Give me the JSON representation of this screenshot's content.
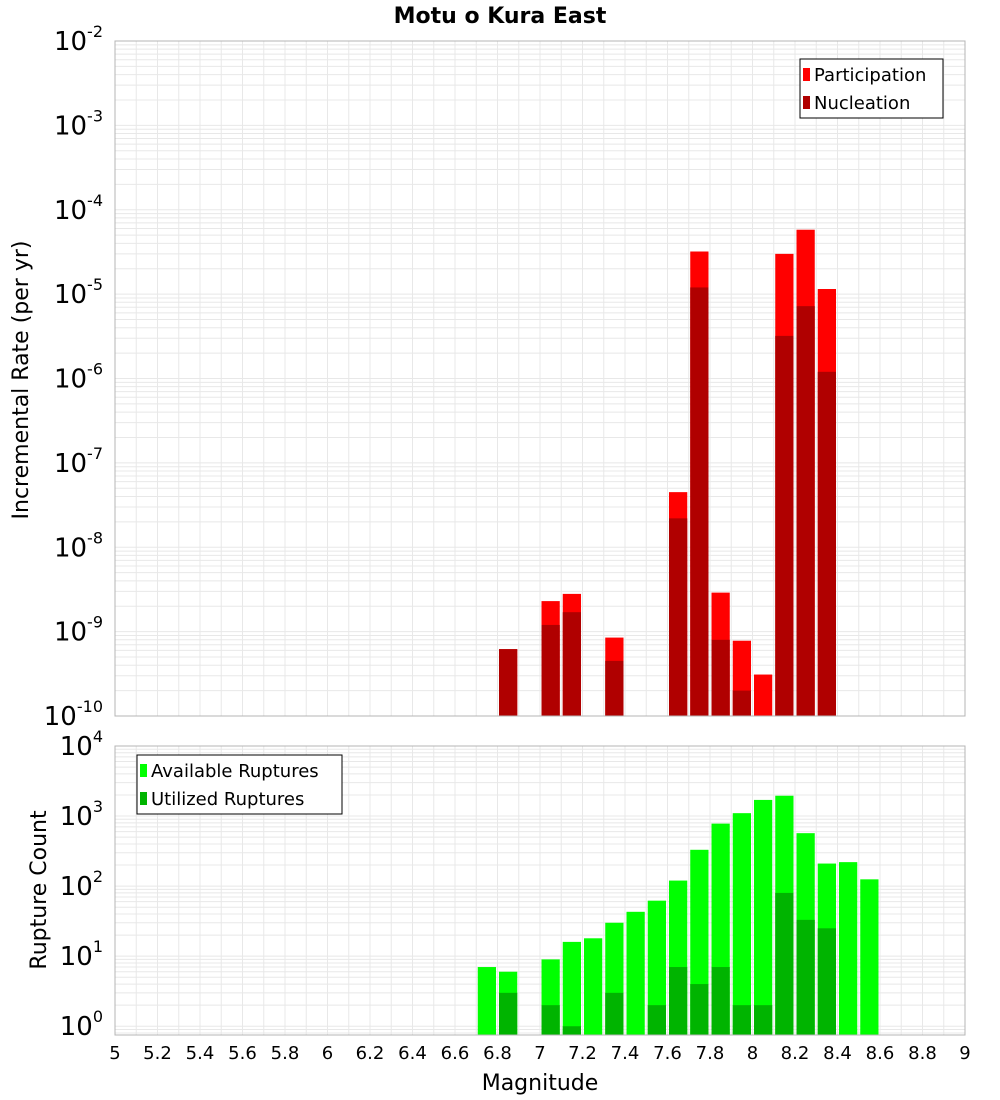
{
  "title": "Motu o Kura East",
  "chart_data": [
    {
      "type": "bar",
      "title": "Motu o Kura East",
      "xlabel": "Magnitude",
      "ylabel": "Incremental Rate (per yr)",
      "yscale": "log",
      "ylim": [
        1e-10,
        0.01
      ],
      "xlim": [
        5,
        9
      ],
      "bin_width": 0.1,
      "grid": true,
      "legend_position": "top-right",
      "y_ticks": [
        {
          "base": "10",
          "exp": "-10",
          "value": 1e-10
        },
        {
          "base": "10",
          "exp": "-9",
          "value": 1e-09
        },
        {
          "base": "10",
          "exp": "-8",
          "value": 1e-08
        },
        {
          "base": "10",
          "exp": "-7",
          "value": 1e-07
        },
        {
          "base": "10",
          "exp": "-6",
          "value": 1e-06
        },
        {
          "base": "10",
          "exp": "-5",
          "value": 1e-05
        },
        {
          "base": "10",
          "exp": "-4",
          "value": 0.0001
        },
        {
          "base": "10",
          "exp": "-3",
          "value": 0.001
        },
        {
          "base": "10",
          "exp": "-2",
          "value": 0.01
        }
      ],
      "series": [
        {
          "name": "Participation",
          "color": "#ff0000",
          "points": [
            {
              "x": 6.85,
              "y": 6.2e-10
            },
            {
              "x": 7.05,
              "y": 2.3e-09
            },
            {
              "x": 7.15,
              "y": 2.8e-09
            },
            {
              "x": 7.35,
              "y": 8.5e-10
            },
            {
              "x": 7.65,
              "y": 4.5e-08
            },
            {
              "x": 7.75,
              "y": 3.2e-05
            },
            {
              "x": 7.85,
              "y": 2.9e-09
            },
            {
              "x": 7.95,
              "y": 7.8e-10
            },
            {
              "x": 8.05,
              "y": 3.1e-10
            },
            {
              "x": 8.15,
              "y": 3e-05
            },
            {
              "x": 8.25,
              "y": 5.8e-05
            },
            {
              "x": 8.35,
              "y": 1.15e-05
            }
          ]
        },
        {
          "name": "Nucleation",
          "color": "#b00000",
          "points": [
            {
              "x": 6.85,
              "y": 6.2e-10
            },
            {
              "x": 7.05,
              "y": 1.2e-09
            },
            {
              "x": 7.15,
              "y": 1.7e-09
            },
            {
              "x": 7.35,
              "y": 4.5e-10
            },
            {
              "x": 7.65,
              "y": 2.2e-08
            },
            {
              "x": 7.75,
              "y": 1.2e-05
            },
            {
              "x": 7.85,
              "y": 8e-10
            },
            {
              "x": 7.95,
              "y": 2e-10
            },
            {
              "x": 8.15,
              "y": 3.2e-06
            },
            {
              "x": 8.25,
              "y": 7.2e-06
            },
            {
              "x": 8.35,
              "y": 1.2e-06
            }
          ]
        }
      ]
    },
    {
      "type": "bar",
      "xlabel": "Magnitude",
      "ylabel": "Rupture Count",
      "yscale": "log",
      "ylim": [
        0.75,
        10000
      ],
      "xlim": [
        5,
        9
      ],
      "bin_width": 0.1,
      "grid": true,
      "legend_position": "top-left",
      "y_ticks": [
        {
          "base": "10",
          "exp": "0",
          "value": 1
        },
        {
          "base": "10",
          "exp": "1",
          "value": 10
        },
        {
          "base": "10",
          "exp": "2",
          "value": 100
        },
        {
          "base": "10",
          "exp": "3",
          "value": 1000
        },
        {
          "base": "10",
          "exp": "4",
          "value": 10000
        }
      ],
      "x_ticks": [
        "5",
        "5.2",
        "5.4",
        "5.6",
        "5.8",
        "6",
        "6.2",
        "6.4",
        "6.6",
        "6.8",
        "7",
        "7.2",
        "7.4",
        "7.6",
        "7.8",
        "8",
        "8.2",
        "8.4",
        "8.6",
        "8.8",
        "9"
      ],
      "series": [
        {
          "name": "Available Ruptures",
          "color": "#00ff00",
          "points": [
            {
              "x": 6.75,
              "y": 7
            },
            {
              "x": 6.85,
              "y": 6
            },
            {
              "x": 7.05,
              "y": 9
            },
            {
              "x": 7.15,
              "y": 16
            },
            {
              "x": 7.25,
              "y": 18
            },
            {
              "x": 7.35,
              "y": 30
            },
            {
              "x": 7.45,
              "y": 43
            },
            {
              "x": 7.55,
              "y": 62
            },
            {
              "x": 7.65,
              "y": 120
            },
            {
              "x": 7.75,
              "y": 330
            },
            {
              "x": 7.85,
              "y": 780
            },
            {
              "x": 7.95,
              "y": 1100
            },
            {
              "x": 8.05,
              "y": 1700
            },
            {
              "x": 8.15,
              "y": 1950
            },
            {
              "x": 8.25,
              "y": 570
            },
            {
              "x": 8.35,
              "y": 210
            },
            {
              "x": 8.45,
              "y": 220
            },
            {
              "x": 8.55,
              "y": 125
            }
          ]
        },
        {
          "name": "Utilized Ruptures",
          "color": "#00b400",
          "points": [
            {
              "x": 6.85,
              "y": 3
            },
            {
              "x": 7.05,
              "y": 2
            },
            {
              "x": 7.15,
              "y": 1
            },
            {
              "x": 7.35,
              "y": 3
            },
            {
              "x": 7.55,
              "y": 2
            },
            {
              "x": 7.65,
              "y": 7
            },
            {
              "x": 7.75,
              "y": 4
            },
            {
              "x": 7.85,
              "y": 7
            },
            {
              "x": 7.95,
              "y": 2
            },
            {
              "x": 8.05,
              "y": 2
            },
            {
              "x": 8.15,
              "y": 80
            },
            {
              "x": 8.25,
              "y": 33
            },
            {
              "x": 8.35,
              "y": 25
            }
          ]
        }
      ]
    }
  ]
}
